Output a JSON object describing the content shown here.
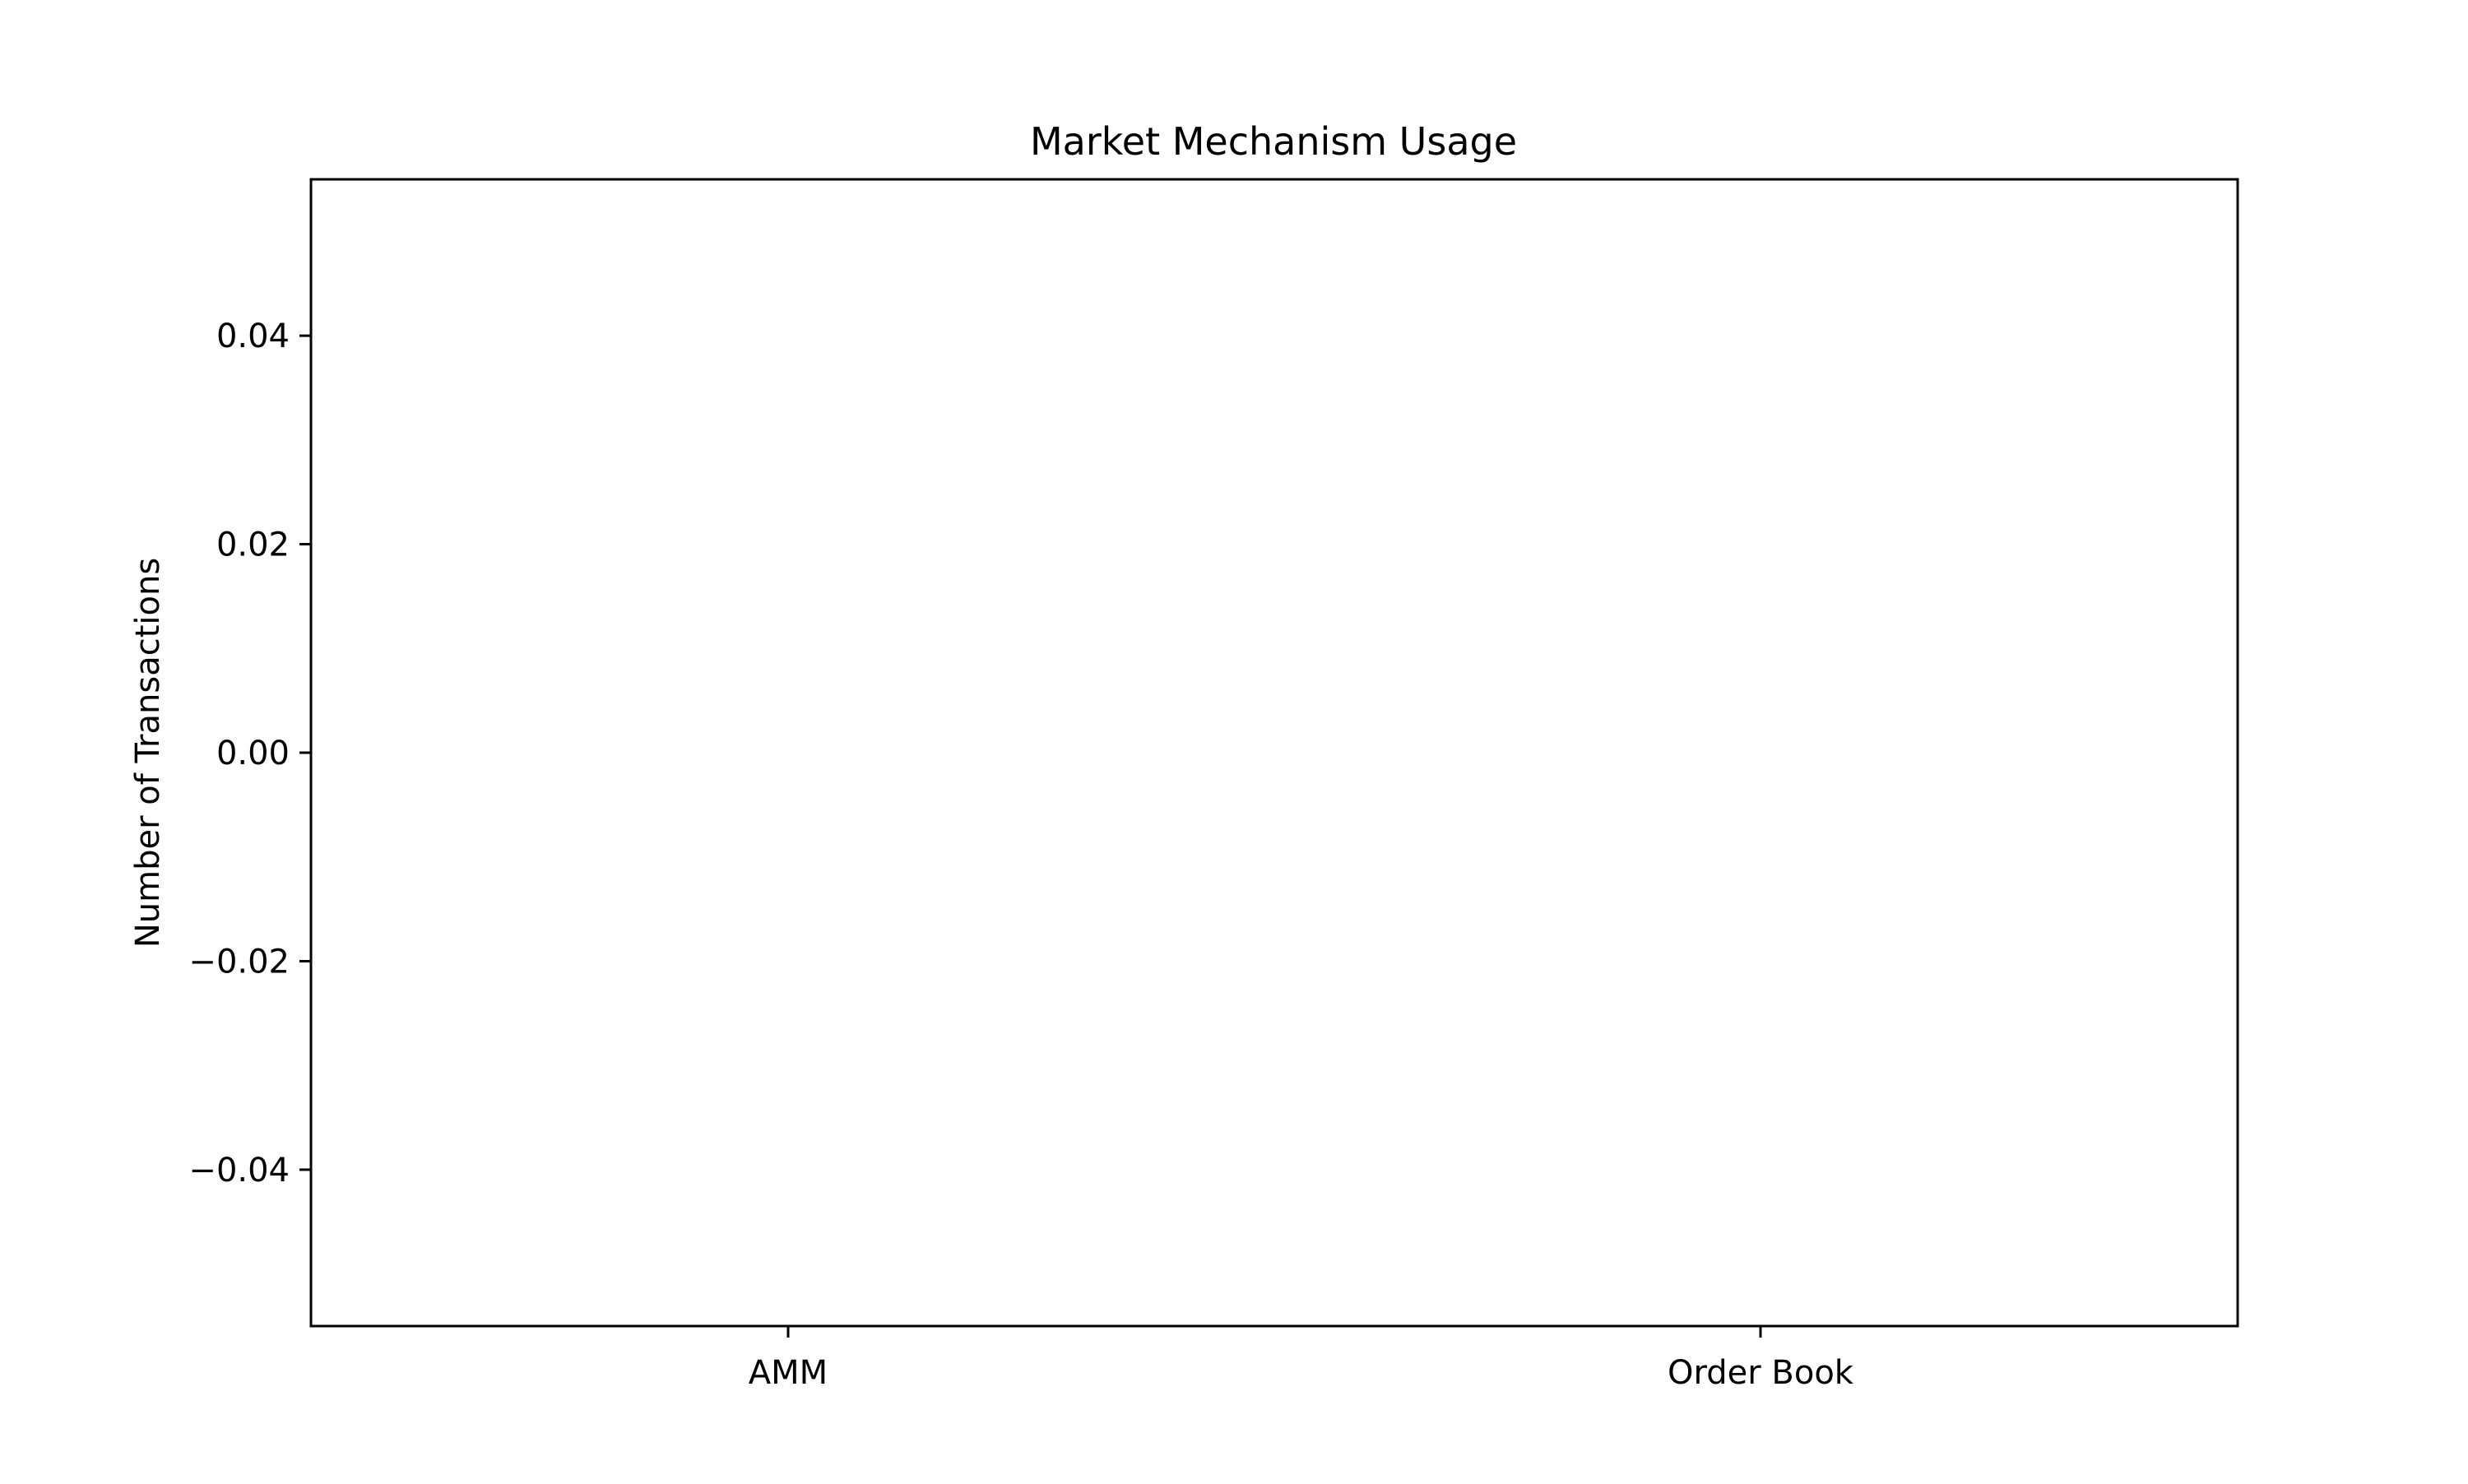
{
  "chart_data": {
    "type": "bar",
    "title": "Market Mechanism Usage",
    "xlabel": "",
    "ylabel": "Number of Transactions",
    "categories": [
      "AMM",
      "Order Book"
    ],
    "values": [
      0,
      0
    ],
    "ylim": [
      -0.055,
      0.055
    ],
    "yticks": [
      0.04,
      0.02,
      0.0,
      -0.02,
      -0.04
    ],
    "ytick_labels": [
      "0.04",
      "0.02",
      "0.00",
      "−0.02",
      "−0.04"
    ],
    "grid": false,
    "colors": {
      "axis": "#000000",
      "bar": "#1f77b4",
      "background": "#ffffff"
    }
  }
}
